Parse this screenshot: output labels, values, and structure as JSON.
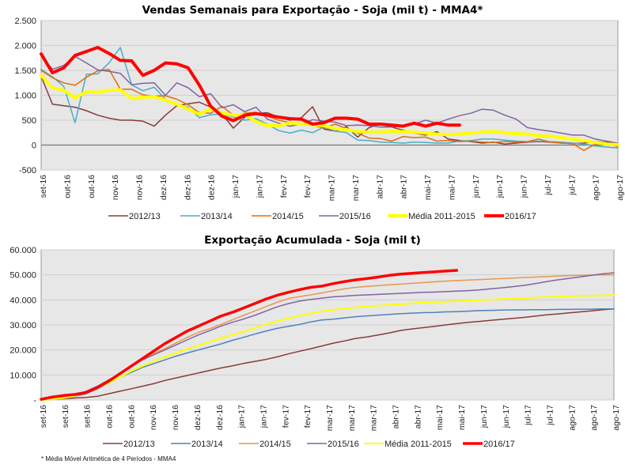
{
  "chart_data": [
    {
      "type": "line",
      "title": "Vendas Semanais para Exportação - Soja (mil t) - MMA4*",
      "xlabel": "",
      "ylabel": "",
      "ylim": [
        -500,
        2500
      ],
      "yticks": [
        -500,
        0,
        500,
        1000,
        1500,
        2000,
        2500
      ],
      "ytick_labels": [
        "-500",
        "0",
        "500",
        "1.000",
        "1.500",
        "2.000",
        "2.500"
      ],
      "grid": true,
      "legend": "bottom",
      "x_tick_labels": [
        "set-16",
        "out-16",
        "out-16",
        "nov-16",
        "nov-16",
        "dez-16",
        "dez-16",
        "dez-16",
        "jan-17",
        "jan-17",
        "fev-17",
        "fev-17",
        "mar-17",
        "mar-17",
        "abr-17",
        "abr-17",
        "mai-17",
        "mai-17",
        "jun-17",
        "jun-17",
        "jun-17",
        "jul-17",
        "jul-17",
        "ago-17",
        "ago-17"
      ],
      "n_points": 52,
      "series": [
        {
          "name": "2012/13",
          "color": "#8B3A3A",
          "width": 1.5,
          "values": [
            1380,
            820,
            790,
            760,
            690,
            600,
            540,
            500,
            500,
            480,
            380,
            600,
            790,
            830,
            860,
            760,
            620,
            340,
            560,
            640,
            650,
            560,
            500,
            550,
            770,
            320,
            280,
            370,
            160,
            350,
            420,
            360,
            300,
            240,
            200,
            270,
            120,
            90,
            70,
            40,
            60,
            20,
            40,
            60,
            70,
            60,
            40,
            30,
            40,
            70,
            50,
            30
          ]
        },
        {
          "name": "2013/14",
          "color": "#4BACC6",
          "width": 1.5,
          "values": [
            1520,
            1370,
            1180,
            450,
            1420,
            1430,
            1650,
            1960,
            1210,
            1090,
            1160,
            920,
            820,
            760,
            550,
            610,
            620,
            560,
            500,
            530,
            420,
            290,
            240,
            300,
            250,
            360,
            280,
            250,
            100,
            90,
            60,
            50,
            40,
            60,
            50,
            40,
            40,
            80,
            90,
            120,
            120,
            100,
            80,
            70,
            80,
            70,
            60,
            40,
            20,
            -20,
            -40,
            -60
          ]
        },
        {
          "name": "2014/15",
          "color": "#E36C09",
          "width": 1.5,
          "values": [
            1500,
            1350,
            1250,
            1200,
            1360,
            1490,
            1520,
            1120,
            1120,
            1010,
            980,
            990,
            920,
            810,
            650,
            640,
            780,
            600,
            640,
            660,
            580,
            500,
            450,
            410,
            400,
            340,
            420,
            330,
            240,
            140,
            130,
            80,
            170,
            150,
            160,
            80,
            90,
            70,
            80,
            60,
            50,
            70,
            60,
            70,
            120,
            60,
            40,
            30,
            -110,
            20,
            20,
            -30
          ]
        },
        {
          "name": "2015/16",
          "color": "#8064A2",
          "width": 1.5,
          "values": [
            1800,
            1520,
            1600,
            1780,
            1650,
            1510,
            1480,
            1440,
            1210,
            1240,
            1250,
            1000,
            1250,
            1150,
            970,
            1030,
            750,
            810,
            670,
            760,
            520,
            440,
            380,
            420,
            510,
            480,
            460,
            390,
            400,
            390,
            360,
            360,
            380,
            420,
            500,
            440,
            520,
            590,
            640,
            720,
            700,
            600,
            520,
            350,
            310,
            280,
            240,
            200,
            200,
            120,
            80,
            40
          ]
        },
        {
          "name": "Média 2011-2015",
          "color": "#FFFF00",
          "width": 4,
          "values": [
            1400,
            1150,
            1100,
            950,
            1070,
            1060,
            1100,
            1110,
            930,
            960,
            970,
            900,
            820,
            720,
            620,
            730,
            640,
            600,
            610,
            470,
            390,
            390,
            440,
            420,
            410,
            390,
            330,
            310,
            270,
            260,
            260,
            280,
            270,
            260,
            240,
            220,
            210,
            220,
            240,
            260,
            270,
            250,
            230,
            220,
            190,
            180,
            150,
            120,
            90,
            50,
            20,
            10
          ]
        },
        {
          "name": "2016/17",
          "color": "#FF0000",
          "width": 4,
          "values": [
            1830,
            1450,
            1550,
            1800,
            1880,
            1960,
            1840,
            1700,
            1690,
            1400,
            1500,
            1650,
            1630,
            1550,
            1200,
            780,
            580,
            490,
            600,
            630,
            600,
            560,
            530,
            520,
            420,
            450,
            540,
            540,
            520,
            420,
            420,
            400,
            380,
            440,
            380,
            440,
            400,
            400,
            null,
            null,
            null,
            null,
            null,
            null,
            null,
            null,
            null,
            null,
            null,
            null,
            null,
            null
          ]
        }
      ]
    },
    {
      "type": "line",
      "title": "Exportação Acumulada - Soja (mil t)",
      "xlabel": "",
      "ylabel": "",
      "ylim": [
        0,
        60000
      ],
      "yticks": [
        0,
        10000,
        20000,
        30000,
        40000,
        50000,
        60000
      ],
      "ytick_labels": [
        "-",
        "10.000",
        "20.000",
        "30.000",
        "40.000",
        "50.000",
        "60.000"
      ],
      "grid": true,
      "legend": "bottom",
      "x_tick_labels": [
        "set-16",
        "set-16",
        "set-16",
        "out-16",
        "out-16",
        "nov-16",
        "nov-16",
        "dez-16",
        "dez-16",
        "jan-17",
        "jan-17",
        "fev-17",
        "fev-17",
        "mar-17",
        "mar-17",
        "mar-17",
        "abr-17",
        "abr-17",
        "mai-17",
        "mai-17",
        "jun-17",
        "jun-17",
        "jul-17",
        "jul-17",
        "ago-17",
        "ago-17",
        "ago-17"
      ],
      "n_points": 52,
      "series": [
        {
          "name": "2012/13",
          "color": "#8B3A3A",
          "width": 1.5,
          "values": [
            0,
            200,
            500,
            800,
            1000,
            1500,
            2500,
            3500,
            4500,
            5500,
            6500,
            7800,
            8800,
            9800,
            10800,
            11800,
            12800,
            13600,
            14600,
            15400,
            16200,
            17200,
            18400,
            19500,
            20500,
            21600,
            22700,
            23600,
            24600,
            25200,
            26000,
            26800,
            27800,
            28400,
            28900,
            29400,
            30000,
            30500,
            31000,
            31400,
            31800,
            32200,
            32600,
            33000,
            33500,
            34000,
            34400,
            34800,
            35200,
            35600,
            36100,
            36400
          ]
        },
        {
          "name": "2013/14",
          "color": "#4F81BD",
          "width": 1.5,
          "values": [
            0,
            300,
            800,
            1500,
            2500,
            4500,
            6800,
            9000,
            11000,
            13000,
            14500,
            16000,
            17500,
            18800,
            20000,
            21200,
            22400,
            23800,
            25000,
            26300,
            27500,
            28600,
            29400,
            30200,
            31200,
            32000,
            32300,
            32800,
            33300,
            33600,
            33900,
            34200,
            34500,
            34700,
            34900,
            35000,
            35200,
            35300,
            35500,
            35700,
            35800,
            35900,
            36000,
            36000,
            36100,
            36100,
            36200,
            36200,
            36300,
            36300,
            36400,
            36400
          ]
        },
        {
          "name": "2014/15",
          "color": "#E9964F",
          "width": 1.5,
          "values": [
            0,
            400,
            1000,
            2000,
            3500,
            5500,
            8000,
            10500,
            13500,
            16500,
            18500,
            20500,
            22800,
            25000,
            27000,
            28500,
            30200,
            32000,
            33800,
            35500,
            37300,
            39000,
            40500,
            41300,
            42000,
            42800,
            43600,
            44400,
            45000,
            45400,
            45700,
            46000,
            46300,
            46600,
            46900,
            47200,
            47500,
            47700,
            47900,
            48100,
            48300,
            48500,
            48700,
            48900,
            49100,
            49300,
            49500,
            49700,
            49800,
            49900,
            50000,
            50000
          ]
        },
        {
          "name": "2015/16",
          "color": "#8064A2",
          "width": 1.5,
          "values": [
            0,
            400,
            1000,
            2000,
            3500,
            5500,
            8000,
            10500,
            13500,
            16000,
            18000,
            20000,
            22000,
            24000,
            26000,
            27700,
            29500,
            31000,
            32300,
            33800,
            35500,
            37200,
            38500,
            39500,
            40200,
            40700,
            41200,
            41500,
            41800,
            42000,
            42200,
            42400,
            42600,
            42800,
            43000,
            43100,
            43300,
            43500,
            43700,
            44000,
            44400,
            44800,
            45300,
            45800,
            46500,
            47300,
            48000,
            48600,
            49200,
            49800,
            50400,
            50800
          ]
        },
        {
          "name": "Média 2011-2015",
          "color": "#FFFF00",
          "width": 2,
          "values": [
            0,
            300,
            800,
            1700,
            3000,
            4800,
            6800,
            9000,
            11500,
            13500,
            15500,
            17200,
            18800,
            20300,
            21800,
            23200,
            24600,
            26000,
            27300,
            28800,
            30200,
            31500,
            32600,
            33700,
            34600,
            35400,
            36000,
            36500,
            37000,
            37400,
            37700,
            38000,
            38300,
            38600,
            38900,
            39100,
            39300,
            39500,
            39700,
            39900,
            40100,
            40300,
            40500,
            40700,
            40900,
            41100,
            41300,
            41500,
            41600,
            41700,
            41800,
            41900
          ]
        },
        {
          "name": "2016/17",
          "color": "#FF0000",
          "width": 3.5,
          "values": [
            300,
            1200,
            1800,
            2200,
            3000,
            5000,
            7500,
            10500,
            13500,
            16500,
            19500,
            22500,
            25000,
            27500,
            29500,
            31500,
            33500,
            35000,
            36700,
            38500,
            40300,
            41800,
            43000,
            44100,
            45000,
            45500,
            46500,
            47300,
            48000,
            48500,
            49100,
            49800,
            50300,
            50600,
            50900,
            51200,
            51500,
            51800,
            null,
            null,
            null,
            null,
            null,
            null,
            null,
            null,
            null,
            null,
            null,
            null,
            null,
            null
          ]
        }
      ]
    }
  ],
  "footnote": "* Média Móvel Aritmética de 4 Períodos - MMA4"
}
